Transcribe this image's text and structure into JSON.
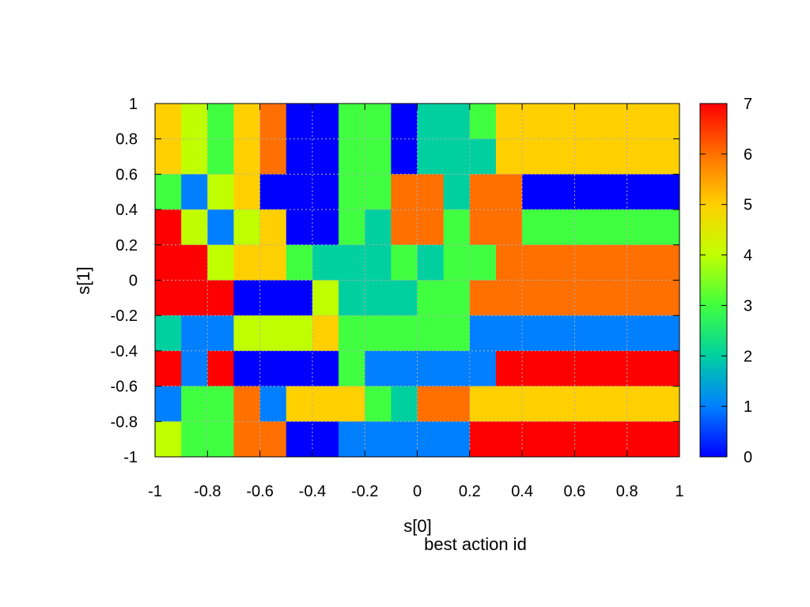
{
  "chart_data": {
    "type": "heatmap",
    "title": "",
    "xlabel": "s[0]",
    "ylabel": "s[1]",
    "colorbar_label": "best action id",
    "xlim": [
      -1,
      1
    ],
    "ylim": [
      -1,
      1
    ],
    "zlim": [
      0,
      7
    ],
    "xticks": [
      "-1",
      "-0.8",
      "-0.6",
      "-0.4",
      "-0.2",
      "0",
      "0.2",
      "0.4",
      "0.6",
      "0.8",
      "1"
    ],
    "yticks": [
      "1",
      "0.8",
      "0.6",
      "0.4",
      "0.2",
      "0",
      "-0.2",
      "-0.4",
      "-0.6",
      "-0.8",
      "-1"
    ],
    "cbticks": [
      "0",
      "1",
      "2",
      "3",
      "4",
      "5",
      "6",
      "7"
    ],
    "grid": true,
    "colormap": "rainbow",
    "colormap_stops": [
      "#0000ff",
      "#0080ff",
      "#00d0a0",
      "#40ff40",
      "#c0ff00",
      "#ffd000",
      "#ff7000",
      "#ff0000"
    ],
    "x_start": -1,
    "x_step": 0.1,
    "y_start": 1,
    "y_step": -0.1,
    "grid_values": [
      [
        5,
        4,
        3,
        5,
        6,
        0,
        0,
        3,
        3,
        0,
        2,
        2,
        3,
        5,
        5,
        5,
        5,
        5,
        5,
        5
      ],
      [
        5,
        4,
        3,
        5,
        6,
        0,
        0,
        3,
        3,
        0,
        2,
        2,
        2,
        5,
        5,
        5,
        5,
        5,
        5,
        5
      ],
      [
        3,
        1,
        4,
        5,
        0,
        0,
        0,
        3,
        3,
        6,
        6,
        2,
        6,
        6,
        0,
        0,
        0,
        0,
        0,
        0
      ],
      [
        7,
        4,
        1,
        4,
        5,
        0,
        0,
        3,
        2,
        6,
        6,
        3,
        6,
        6,
        3,
        3,
        3,
        3,
        3,
        3
      ],
      [
        7,
        7,
        4,
        5,
        5,
        3,
        2,
        2,
        2,
        3,
        2,
        3,
        3,
        6,
        6,
        6,
        6,
        6,
        6,
        6
      ],
      [
        7,
        7,
        7,
        0,
        0,
        0,
        4,
        2,
        2,
        2,
        3,
        3,
        6,
        6,
        6,
        6,
        6,
        6,
        6,
        6
      ],
      [
        2,
        1,
        1,
        4,
        4,
        4,
        5,
        3,
        3,
        3,
        3,
        3,
        1,
        1,
        1,
        1,
        1,
        1,
        1,
        1
      ],
      [
        7,
        1,
        7,
        0,
        0,
        0,
        0,
        3,
        1,
        1,
        1,
        1,
        1,
        7,
        7,
        7,
        7,
        7,
        7,
        7
      ],
      [
        1,
        3,
        3,
        6,
        1,
        5,
        5,
        5,
        3,
        2,
        6,
        6,
        5,
        5,
        5,
        5,
        5,
        5,
        5,
        5
      ],
      [
        4,
        3,
        3,
        6,
        6,
        0,
        0,
        1,
        1,
        1,
        1,
        1,
        7,
        7,
        7,
        7,
        7,
        7,
        7,
        7
      ]
    ]
  }
}
